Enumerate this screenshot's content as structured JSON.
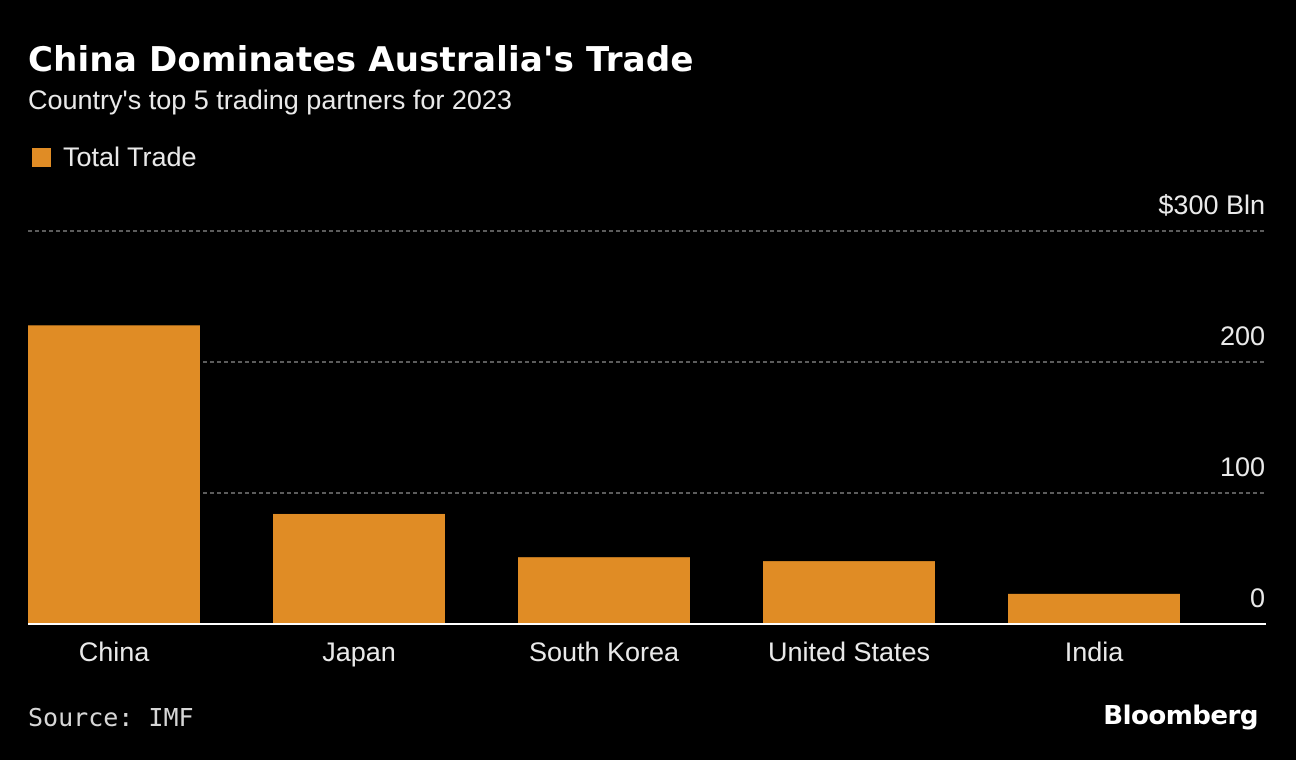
{
  "header": {
    "title": "China Dominates Australia's Trade",
    "subtitle": "Country's top 5 trading partners for 2023"
  },
  "legend": {
    "label": "Total Trade"
  },
  "colors": {
    "bar": "#e08c25",
    "background": "#000000",
    "grid": "#7a7a7a",
    "axis": "#ffffff",
    "text": "#e9e9e9"
  },
  "chart_data": {
    "type": "bar",
    "title": "China Dominates Australia's Trade",
    "subtitle": "Country's top 5 trading partners for 2023",
    "categories": [
      "China",
      "Japan",
      "South Korea",
      "United States",
      "India"
    ],
    "series": [
      {
        "name": "Total Trade",
        "values": [
          228,
          84,
          51,
          48,
          23
        ]
      }
    ],
    "ylim": [
      0,
      300
    ],
    "yticks": [
      0,
      100,
      200,
      300
    ],
    "ytick_labels": [
      "0",
      "100",
      "200",
      "$300 Bln"
    ],
    "xlabel": "",
    "ylabel": "",
    "grid": true,
    "legend_position": "top-left"
  },
  "footer": {
    "source": "Source: IMF",
    "brand": "Bloomberg"
  }
}
